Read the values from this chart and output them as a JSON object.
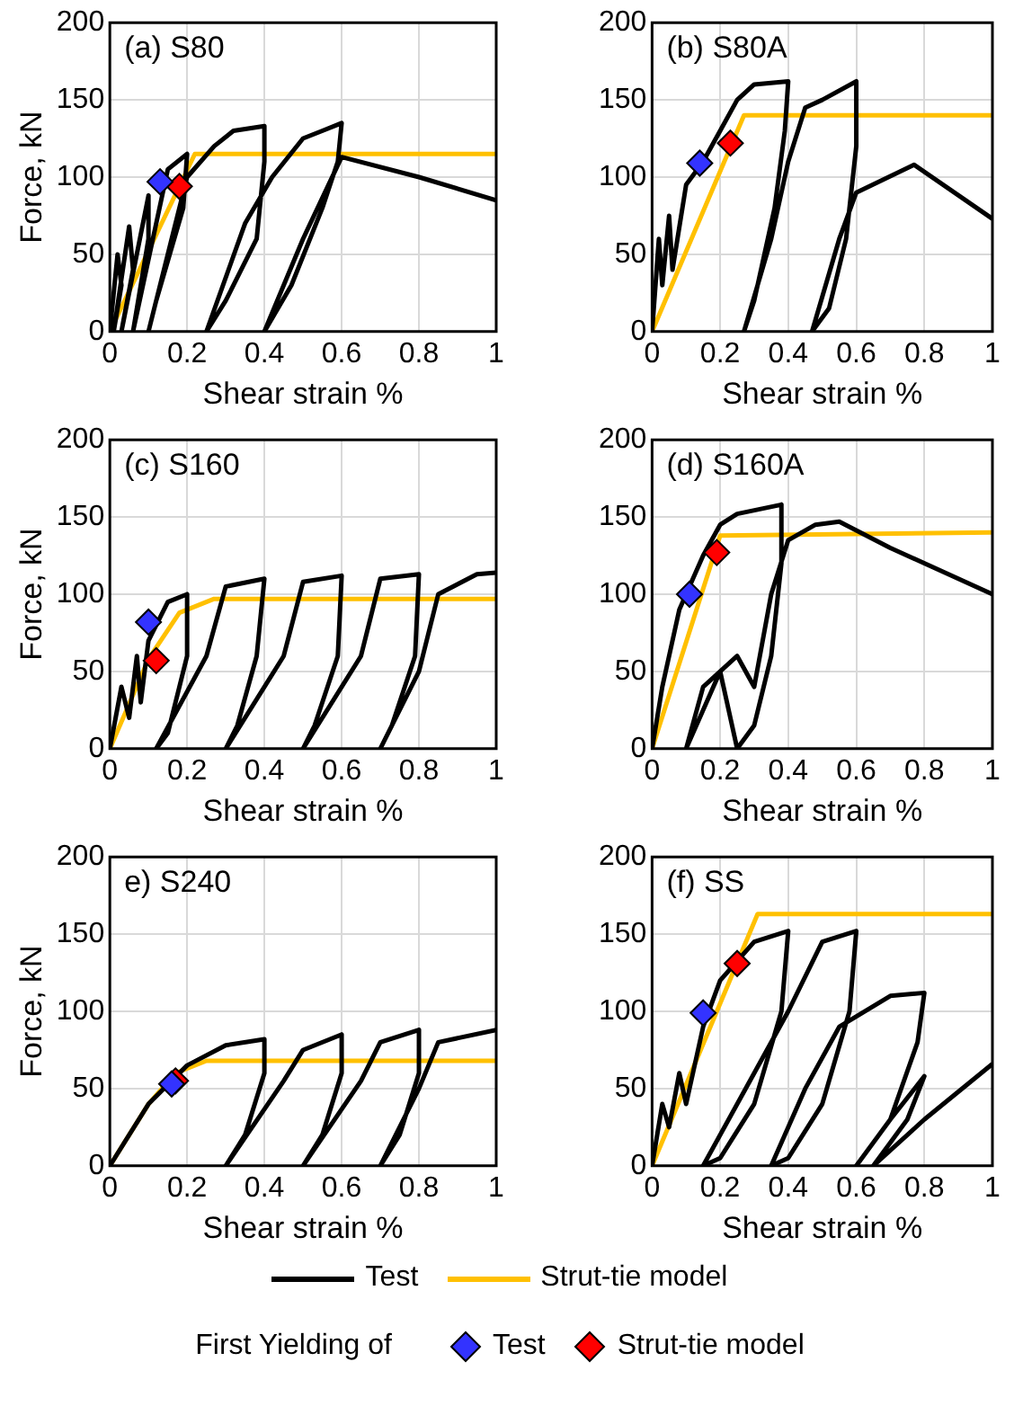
{
  "chart_data": [
    {
      "type": "line",
      "title": "(a) S80",
      "xlabel": "Shear strain %",
      "ylabel": "Force, kN",
      "xlim": [
        0,
        1
      ],
      "ylim": [
        0,
        200
      ],
      "xticks": [
        0,
        0.2,
        0.4,
        0.6,
        0.8,
        1
      ],
      "yticks": [
        0,
        50,
        100,
        150,
        200
      ],
      "grid": true,
      "legend": "bottom",
      "legend_title": "First Yielding of",
      "series": [
        {
          "name": "Test",
          "type": "line",
          "color": "#000000",
          "marker": "none",
          "x": [
            0,
            0.02,
            0.03,
            0.01,
            0.05,
            0.06,
            0.03,
            0.1,
            0.1,
            0.06,
            0.15,
            0.2,
            0.19,
            0.12,
            0.1,
            0.2,
            0.27,
            0.32,
            0.4,
            0.4,
            0.38,
            0.3,
            0.25,
            0.35,
            0.42,
            0.5,
            0.55,
            0.6,
            0.59,
            0.55,
            0.47,
            0.4,
            0.5,
            0.6,
            0.8,
            1
          ],
          "values": [
            0,
            50,
            30,
            0,
            68,
            40,
            0,
            88,
            60,
            0,
            105,
            115,
            80,
            20,
            0,
            100,
            120,
            130,
            133,
            110,
            60,
            20,
            0,
            70,
            100,
            125,
            130,
            135,
            110,
            80,
            30,
            0,
            60,
            113,
            100,
            85
          ]
        },
        {
          "name": "Strut-tie model",
          "type": "line",
          "color": "#ffc000",
          "marker": "none",
          "x": [
            0,
            0.22,
            1
          ],
          "values": [
            0,
            115,
            115
          ]
        },
        {
          "name": "Test",
          "type": "scatter",
          "color": "#3333ff",
          "marker": "diamond",
          "x": [
            0.13
          ],
          "values": [
            97
          ]
        },
        {
          "name": "Strut-tie model",
          "type": "scatter",
          "color": "#ff0000",
          "marker": "diamond",
          "x": [
            0.18
          ],
          "values": [
            94
          ]
        }
      ]
    },
    {
      "type": "line",
      "title": "(b) S80A",
      "xlabel": "Shear strain %",
      "xlim": [
        0,
        1
      ],
      "ylim": [
        0,
        200
      ],
      "xticks": [
        0,
        0.2,
        0.4,
        0.6,
        0.8,
        1
      ],
      "yticks": [
        0,
        50,
        100,
        150,
        200
      ],
      "grid": true,
      "series": [
        {
          "type": "line",
          "color": "#000000",
          "marker": "none",
          "x": [
            0,
            0.02,
            0.03,
            0.05,
            0.06,
            0.1,
            0.15,
            0.2,
            0.25,
            0.3,
            0.4,
            0.39,
            0.36,
            0.3,
            0.27,
            0.35,
            0.4,
            0.45,
            0.5,
            0.6,
            0.6,
            0.57,
            0.52,
            0.47,
            0.55,
            0.6,
            0.77,
            1
          ],
          "values": [
            0,
            60,
            30,
            75,
            40,
            95,
            110,
            130,
            150,
            160,
            162,
            130,
            80,
            20,
            0,
            60,
            110,
            145,
            150,
            162,
            120,
            60,
            15,
            0,
            60,
            90,
            108,
            73
          ]
        },
        {
          "type": "line",
          "color": "#ffc000",
          "marker": "none",
          "x": [
            0,
            0.27,
            1
          ],
          "values": [
            0,
            140,
            140
          ]
        },
        {
          "type": "scatter",
          "color": "#3333ff",
          "marker": "diamond",
          "x": [
            0.14
          ],
          "values": [
            109
          ]
        },
        {
          "type": "scatter",
          "color": "#ff0000",
          "marker": "diamond",
          "x": [
            0.23
          ],
          "values": [
            122
          ]
        }
      ]
    },
    {
      "type": "line",
      "title": "(c) S160",
      "xlabel": "Shear strain %",
      "ylabel": "Force, kN",
      "xlim": [
        0,
        1
      ],
      "ylim": [
        0,
        200
      ],
      "xticks": [
        0,
        0.2,
        0.4,
        0.6,
        0.8,
        1
      ],
      "yticks": [
        0,
        50,
        100,
        150,
        200
      ],
      "grid": true,
      "series": [
        {
          "type": "line",
          "color": "#000000",
          "marker": "none",
          "x": [
            0,
            0.03,
            0.05,
            0.07,
            0.08,
            0.1,
            0.15,
            0.2,
            0.2,
            0.15,
            0.12,
            0.25,
            0.3,
            0.4,
            0.38,
            0.33,
            0.3,
            0.45,
            0.5,
            0.6,
            0.59,
            0.53,
            0.5,
            0.65,
            0.7,
            0.8,
            0.79,
            0.73,
            0.7,
            0.8,
            0.85,
            0.95,
            1
          ],
          "values": [
            0,
            40,
            20,
            60,
            30,
            70,
            95,
            100,
            60,
            10,
            0,
            60,
            105,
            110,
            60,
            15,
            0,
            60,
            108,
            112,
            60,
            15,
            0,
            60,
            110,
            113,
            60,
            15,
            0,
            50,
            100,
            113,
            114
          ]
        },
        {
          "type": "line",
          "color": "#ffc000",
          "marker": "none",
          "x": [
            0,
            0.1,
            0.18,
            0.27,
            1
          ],
          "values": [
            0,
            58,
            88,
            97,
            97
          ]
        },
        {
          "type": "scatter",
          "color": "#3333ff",
          "marker": "diamond",
          "x": [
            0.1
          ],
          "values": [
            82
          ]
        },
        {
          "type": "scatter",
          "color": "#ff0000",
          "marker": "diamond",
          "x": [
            0.12
          ],
          "values": [
            57
          ]
        }
      ]
    },
    {
      "type": "line",
      "title": "(d) S160A",
      "xlabel": "Shear strain %",
      "xlim": [
        0,
        1
      ],
      "ylim": [
        0,
        200
      ],
      "xticks": [
        0,
        0.2,
        0.4,
        0.6,
        0.8,
        1
      ],
      "yticks": [
        0,
        50,
        100,
        150,
        200
      ],
      "grid": true,
      "series": [
        {
          "type": "line",
          "color": "#000000",
          "marker": "none",
          "x": [
            0,
            0.03,
            0.05,
            0.08,
            0.12,
            0.15,
            0.2,
            0.25,
            0.38,
            0.38,
            0.35,
            0.3,
            0.25,
            0.2,
            0.1,
            0.15,
            0.25,
            0.3,
            0.35,
            0.4,
            0.48,
            0.55,
            0.7,
            1
          ],
          "values": [
            0,
            40,
            60,
            90,
            110,
            125,
            145,
            152,
            158,
            120,
            60,
            15,
            0,
            50,
            0,
            40,
            60,
            40,
            100,
            135,
            145,
            147,
            130,
            100
          ]
        },
        {
          "type": "line",
          "color": "#ffc000",
          "marker": "none",
          "x": [
            0,
            0.2,
            1
          ],
          "values": [
            0,
            138,
            140
          ]
        },
        {
          "type": "scatter",
          "color": "#3333ff",
          "marker": "diamond",
          "x": [
            0.11
          ],
          "values": [
            100
          ]
        },
        {
          "type": "scatter",
          "color": "#ff0000",
          "marker": "diamond",
          "x": [
            0.19
          ],
          "values": [
            127
          ]
        }
      ]
    },
    {
      "type": "line",
      "title": "e) S240",
      "xlabel": "Shear strain %",
      "ylabel": "Force, kN",
      "xlim": [
        0,
        1
      ],
      "ylim": [
        0,
        200
      ],
      "xticks": [
        0,
        0.2,
        0.4,
        0.6,
        0.8,
        1
      ],
      "yticks": [
        0,
        50,
        100,
        150,
        200
      ],
      "grid": true,
      "series": [
        {
          "type": "line",
          "color": "#000000",
          "marker": "none",
          "x": [
            0,
            0.1,
            0.2,
            0.3,
            0.4,
            0.4,
            0.35,
            0.3,
            0.45,
            0.5,
            0.6,
            0.6,
            0.55,
            0.5,
            0.65,
            0.7,
            0.8,
            0.8,
            0.75,
            0.7,
            0.8,
            0.85,
            1
          ],
          "values": [
            0,
            40,
            65,
            78,
            82,
            60,
            20,
            0,
            55,
            75,
            85,
            60,
            20,
            0,
            55,
            80,
            88,
            60,
            20,
            0,
            50,
            80,
            88
          ]
        },
        {
          "type": "line",
          "color": "#ffc000",
          "marker": "none",
          "x": [
            0,
            0.1,
            0.17,
            0.25,
            1
          ],
          "values": [
            0,
            40,
            60,
            68,
            68
          ]
        },
        {
          "type": "scatter",
          "color": "#3333ff",
          "marker": "diamond",
          "x": [
            0.16
          ],
          "values": [
            53
          ]
        },
        {
          "type": "scatter",
          "color": "#ff0000",
          "marker": "diamond",
          "x": [
            0.17
          ],
          "values": [
            55
          ]
        }
      ]
    },
    {
      "type": "line",
      "title": "(f) SS",
      "xlabel": "Shear strain %",
      "xlim": [
        0,
        1
      ],
      "ylim": [
        0,
        200
      ],
      "xticks": [
        0,
        0.2,
        0.4,
        0.6,
        0.8,
        1
      ],
      "yticks": [
        0,
        50,
        100,
        150,
        200
      ],
      "grid": true,
      "series": [
        {
          "type": "line",
          "color": "#000000",
          "marker": "none",
          "x": [
            0,
            0.03,
            0.05,
            0.08,
            0.1,
            0.15,
            0.2,
            0.3,
            0.4,
            0.38,
            0.3,
            0.2,
            0.15,
            0.3,
            0.4,
            0.5,
            0.6,
            0.58,
            0.5,
            0.4,
            0.35,
            0.45,
            0.55,
            0.7,
            0.8,
            0.78,
            0.7,
            0.6,
            0.7,
            0.8,
            0.75,
            0.65,
            0.8,
            1
          ],
          "values": [
            0,
            40,
            25,
            60,
            40,
            90,
            120,
            145,
            152,
            100,
            40,
            5,
            0,
            60,
            100,
            145,
            152,
            100,
            40,
            5,
            0,
            50,
            90,
            110,
            112,
            80,
            30,
            0,
            30,
            58,
            30,
            0,
            30,
            66
          ]
        },
        {
          "type": "line",
          "color": "#ffc000",
          "marker": "none",
          "x": [
            0,
            0.31,
            1
          ],
          "values": [
            0,
            163,
            163
          ]
        },
        {
          "type": "scatter",
          "color": "#3333ff",
          "marker": "diamond",
          "x": [
            0.15
          ],
          "values": [
            99
          ]
        },
        {
          "type": "scatter",
          "color": "#ff0000",
          "marker": "diamond",
          "x": [
            0.25
          ],
          "values": [
            131
          ]
        }
      ]
    }
  ]
}
